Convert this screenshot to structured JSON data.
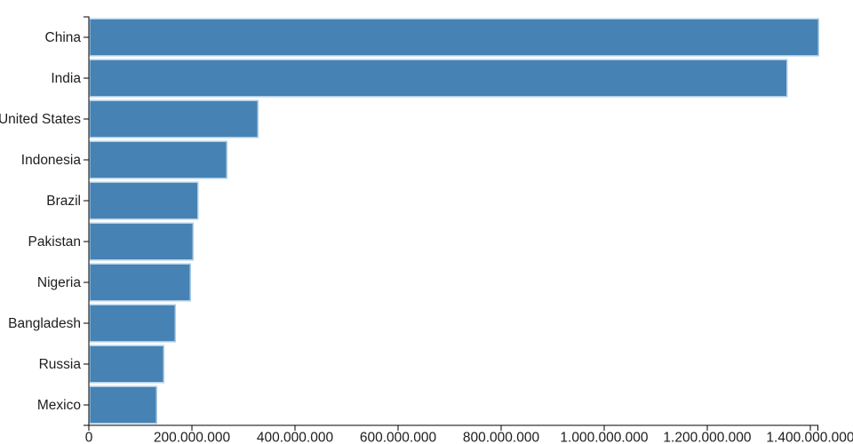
{
  "chart_data": {
    "type": "bar",
    "orientation": "horizontal",
    "title": "",
    "xlabel": "",
    "ylabel": "",
    "categories": [
      "China",
      "India",
      "United States",
      "Indonesia",
      "Brazil",
      "Pakistan",
      "Nigeria",
      "Bangladesh",
      "Russia",
      "Mexico"
    ],
    "values": [
      1415045928,
      1354051854,
      326766748,
      266794980,
      210867954,
      200813818,
      195875237,
      166368149,
      143964709,
      130759074
    ],
    "xlim": [
      0,
      1415045928
    ],
    "x_ticks": {
      "values": [
        0,
        200000000,
        400000000,
        600000000,
        800000000,
        1000000000,
        1200000000,
        1400000000
      ],
      "labels": [
        "0",
        "200.000.000",
        "400.000.000",
        "600.000.000",
        "800.000.000",
        "1.000.000.000",
        "1.200.000.000",
        "1.400.000.000"
      ]
    },
    "grid": false,
    "legend": null,
    "colors": {
      "bar_fill": "#4682b4",
      "bar_stroke": "#aecde5",
      "axis_line": "#000000",
      "tick_text": "#1d1d1d"
    }
  }
}
